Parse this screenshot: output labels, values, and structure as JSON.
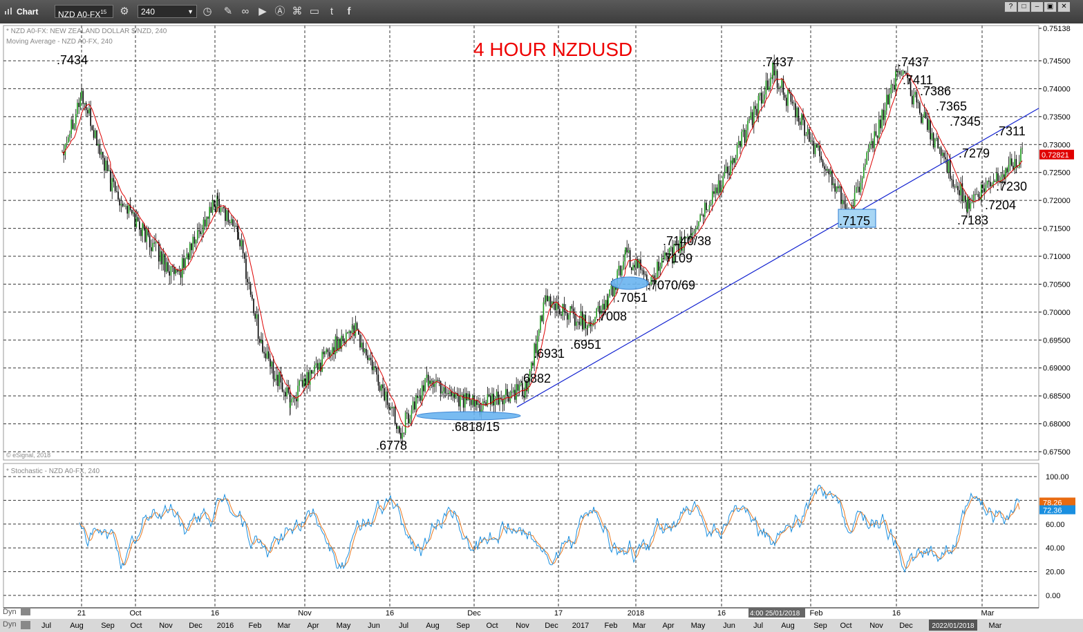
{
  "toolbar": {
    "window_title": "Chart",
    "symbol": "NZD A0-FX",
    "symbol_sup": "15",
    "interval": "240",
    "icons": [
      "pencil-icon",
      "link-icon",
      "play-icon",
      "alert-icon",
      "tag-icon",
      "comment-icon",
      "twitter-icon",
      "facebook-icon"
    ]
  },
  "main_pane": {
    "header_line1": "* NZD A0-FX: NEW ZEALAND DOLLAR $/NZD, 240",
    "header_line2": "Moving Average - NZD A0-FX, 240",
    "copyright": "© eSignal, 2018",
    "title": "4 HOUR NZDUSD",
    "top_price": "0.75138",
    "current_price": "0.72821",
    "price_labels": [
      "0.74500",
      "0.74000",
      "0.73500",
      "0.73000",
      "0.72500",
      "0.72000",
      "0.71500",
      "0.71000",
      "0.70500",
      "0.70000",
      "0.69500",
      "0.69000",
      "0.68500",
      "0.68000",
      "0.67500"
    ]
  },
  "stoch_pane": {
    "header": "* Stochastic - NZD A0-FX, 240",
    "labels": [
      "100.00",
      "80.00",
      "60.00",
      "40.00",
      "20.00",
      "0.00"
    ],
    "value_k": "78.26",
    "value_d": "72.36"
  },
  "x_axis": {
    "upper_labels": [
      "21",
      "Oct",
      "16",
      "Nov",
      "16",
      "Dec",
      "17",
      "2018",
      "16",
      "Feb",
      "16",
      "Mar"
    ],
    "crosshair_label": "4:00 25/01/2018",
    "lower_labels": [
      "Jul",
      "Aug",
      "Sep",
      "Oct",
      "Nov",
      "Dec",
      "2016",
      "Feb",
      "Mar",
      "Apr",
      "May",
      "Jun",
      "Jul",
      "Aug",
      "Sep",
      "Oct",
      "Nov",
      "Dec",
      "2017",
      "Feb",
      "Mar",
      "Apr",
      "May",
      "Jun",
      "Jul",
      "Aug",
      "Sep",
      "Oct",
      "Nov",
      "Dec",
      "2022/01/2018",
      "Mar"
    ],
    "dyn_label": "Dyn"
  },
  "annotations": [
    ".7434",
    ".7437",
    ".7437",
    ".7411",
    ".7386",
    ".7365",
    ".7345",
    ".7311",
    ".7279",
    ".7230",
    ".7204",
    ".7183",
    ".7175",
    ".7140/38",
    ".7109",
    ".7070/69",
    ".7051",
    ".7008",
    ".6951",
    ".6931",
    ".6882",
    ".6818/15",
    ".6778"
  ],
  "chart_data": {
    "type": "line",
    "title": "4 HOUR NZDUSD",
    "ylim": [
      0.673,
      0.7525
    ],
    "x": [
      "2017-10-21",
      "2017-10-25",
      "2017-11-01",
      "2017-11-08",
      "2017-11-15",
      "2017-11-18",
      "2017-11-22",
      "2017-11-27",
      "2017-12-04",
      "2017-12-08",
      "2017-12-15",
      "2017-12-22",
      "2017-12-29",
      "2018-01-05",
      "2018-01-12",
      "2018-01-19",
      "2018-01-25",
      "2018-02-01",
      "2018-02-06",
      "2018-02-09",
      "2018-02-16",
      "2018-02-22",
      "2018-02-26",
      "2018-03-01",
      "2018-03-05",
      "2018-03-09",
      "2018-03-14"
    ],
    "series": [
      {
        "values": [
          0.7434,
          0.733,
          0.724,
          0.716,
          0.707,
          0.718,
          0.7205,
          0.705,
          0.685,
          0.6825,
          0.6965,
          0.688,
          0.6778,
          0.689,
          0.6818,
          0.6945,
          0.6835,
          0.702,
          0.6995,
          0.7051,
          0.712,
          0.714,
          0.722,
          0.7437,
          0.736,
          0.7295,
          0.7282
        ]
      }
    ],
    "stochastic": {
      "k_last": 78.26,
      "d_last": 72.36,
      "ylim": [
        0,
        100
      ]
    },
    "trendline": {
      "from": 0.683,
      "to": 0.7365
    }
  }
}
